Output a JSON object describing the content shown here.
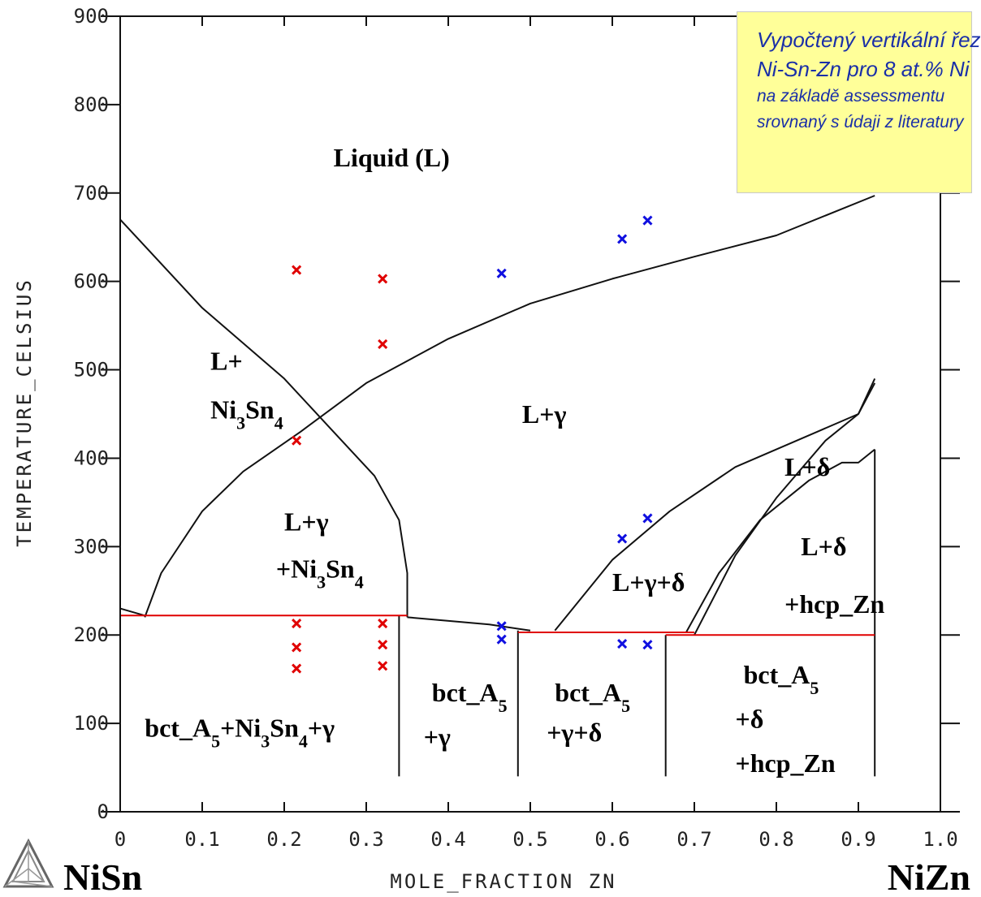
{
  "chart_data": {
    "type": "scatter",
    "title": "",
    "xlabel": "MOLE_FRACTION ZN",
    "ylabel": "TEMPERATURE_CELSIUS",
    "xlim": [
      0,
      1.0
    ],
    "ylim": [
      0,
      900
    ],
    "x_ticks": [
      "0",
      "0.1",
      "0.2",
      "0.3",
      "0.4",
      "0.5",
      "0.6",
      "0.7",
      "0.8",
      "0.9",
      "1.0"
    ],
    "y_ticks": [
      "0",
      "100",
      "200",
      "300",
      "400",
      "500",
      "600",
      "700",
      "800",
      "900"
    ],
    "grid": false,
    "left_component": "NiSn",
    "right_component": "NiZn",
    "series": [
      {
        "color": "#e00000",
        "marker": "x",
        "points": [
          {
            "x": 0.215,
            "y": 613
          },
          {
            "x": 0.215,
            "y": 420
          },
          {
            "x": 0.215,
            "y": 213
          },
          {
            "x": 0.215,
            "y": 186
          },
          {
            "x": 0.215,
            "y": 162
          },
          {
            "x": 0.32,
            "y": 603
          },
          {
            "x": 0.32,
            "y": 529
          },
          {
            "x": 0.32,
            "y": 213
          },
          {
            "x": 0.32,
            "y": 189
          },
          {
            "x": 0.32,
            "y": 165
          }
        ]
      },
      {
        "color": "#1010e0",
        "marker": "x",
        "points": [
          {
            "x": 0.465,
            "y": 609
          },
          {
            "x": 0.465,
            "y": 210
          },
          {
            "x": 0.465,
            "y": 195
          },
          {
            "x": 0.612,
            "y": 648
          },
          {
            "x": 0.612,
            "y": 309
          },
          {
            "x": 0.612,
            "y": 190
          },
          {
            "x": 0.643,
            "y": 669
          },
          {
            "x": 0.643,
            "y": 332
          },
          {
            "x": 0.643,
            "y": 189
          }
        ]
      }
    ],
    "boundaries": [
      {
        "color": "#111111",
        "points": [
          [
            0,
            670
          ],
          [
            0.03,
            640
          ],
          [
            0.1,
            570
          ],
          [
            0.2,
            490
          ],
          [
            0.26,
            430
          ],
          [
            0.31,
            380
          ],
          [
            0.34,
            330
          ],
          [
            0.35,
            270
          ],
          [
            0.35,
            220
          ]
        ]
      },
      {
        "color": "#111111",
        "points": [
          [
            0.03,
            220
          ],
          [
            0.05,
            270
          ],
          [
            0.1,
            340
          ],
          [
            0.15,
            385
          ],
          [
            0.22,
            430
          ],
          [
            0.3,
            485
          ],
          [
            0.4,
            535
          ],
          [
            0.5,
            575
          ],
          [
            0.6,
            603
          ],
          [
            0.7,
            628
          ],
          [
            0.8,
            652
          ],
          [
            0.92,
            697
          ]
        ]
      },
      {
        "color": "#111111",
        "points": [
          [
            0,
            230
          ],
          [
            0.03,
            222
          ]
        ]
      },
      {
        "color": "#111111",
        "points": [
          [
            0,
            150
          ],
          [
            0,
            230
          ]
        ]
      },
      {
        "color": "#111111",
        "points": [
          [
            0.35,
            220
          ],
          [
            0.45,
            212
          ],
          [
            0.5,
            205
          ]
        ]
      },
      {
        "color": "#111111",
        "points": [
          [
            0.53,
            205
          ],
          [
            0.6,
            285
          ],
          [
            0.67,
            340
          ],
          [
            0.75,
            390
          ],
          [
            0.8,
            410
          ],
          [
            0.85,
            430
          ],
          [
            0.9,
            450
          ],
          [
            0.92,
            490
          ]
        ]
      },
      {
        "color": "#111111",
        "points": [
          [
            0.69,
            203
          ],
          [
            0.73,
            270
          ],
          [
            0.78,
            330
          ],
          [
            0.84,
            375
          ],
          [
            0.88,
            395
          ],
          [
            0.9,
            395
          ],
          [
            0.92,
            410
          ]
        ]
      },
      {
        "color": "#111111",
        "points": [
          [
            0.7,
            200
          ],
          [
            0.75,
            290
          ],
          [
            0.8,
            355
          ],
          [
            0.86,
            420
          ],
          [
            0.9,
            450
          ],
          [
            0.92,
            485
          ]
        ]
      },
      {
        "color": "#111111",
        "points": [
          [
            0.34,
            40
          ],
          [
            0.34,
            222
          ]
        ]
      },
      {
        "color": "#111111",
        "points": [
          [
            0.485,
            40
          ],
          [
            0.485,
            205
          ]
        ]
      },
      {
        "color": "#111111",
        "points": [
          [
            0.665,
            40
          ],
          [
            0.665,
            200
          ]
        ]
      },
      {
        "color": "#111111",
        "points": [
          [
            0.92,
            40
          ],
          [
            0.92,
            410
          ]
        ]
      },
      {
        "color": "#e00000",
        "points": [
          [
            0,
            222
          ],
          [
            0.35,
            222
          ]
        ]
      },
      {
        "color": "#e00000",
        "points": [
          [
            0.485,
            203
          ],
          [
            0.7,
            203
          ]
        ]
      },
      {
        "color": "#e00000",
        "points": [
          [
            0.665,
            200
          ],
          [
            0.92,
            200
          ]
        ]
      }
    ],
    "annotations": [
      {
        "text": "Liquid (L)",
        "x": 0.26,
        "y": 730
      },
      {
        "text": "L+",
        "x": 0.11,
        "y": 500
      },
      {
        "text": "Ni3Sn4",
        "x": 0.11,
        "y": 445
      },
      {
        "text": "L+γ",
        "x": 0.49,
        "y": 440
      },
      {
        "text": "L+γ",
        "x": 0.2,
        "y": 318
      },
      {
        "text": "+Ni3Sn4",
        "x": 0.19,
        "y": 265
      },
      {
        "text": "L+δ",
        "x": 0.81,
        "y": 380
      },
      {
        "text": "L+δ",
        "x": 0.83,
        "y": 290
      },
      {
        "text": "+hcp_Zn",
        "x": 0.81,
        "y": 225
      },
      {
        "text": "L+γ+δ",
        "x": 0.6,
        "y": 250
      },
      {
        "text": "bct_A5+Ni3Sn4+γ",
        "x": 0.03,
        "y": 85
      },
      {
        "text": "bct_A5",
        "x": 0.38,
        "y": 125
      },
      {
        "text": "+γ",
        "x": 0.37,
        "y": 75
      },
      {
        "text": "bct_A5",
        "x": 0.53,
        "y": 125
      },
      {
        "text": "+γ+δ",
        "x": 0.52,
        "y": 80
      },
      {
        "text": "bct_A5",
        "x": 0.76,
        "y": 145
      },
      {
        "text": "+δ",
        "x": 0.75,
        "y": 95
      },
      {
        "text": "+hcp_Zn",
        "x": 0.75,
        "y": 45
      }
    ]
  },
  "note": {
    "line1": "Vypočtený vertikální řez",
    "line2": "Ni-Sn-Zn pro 8 at.% Ni",
    "line3": "na základě assessmentu",
    "line4": "srovnaný s údaji z literatury"
  },
  "colors": {
    "red_marker": "#e00000",
    "blue_marker": "#1010e0",
    "note_bg": "#ffff99",
    "note_text": "#1a2fa8"
  }
}
